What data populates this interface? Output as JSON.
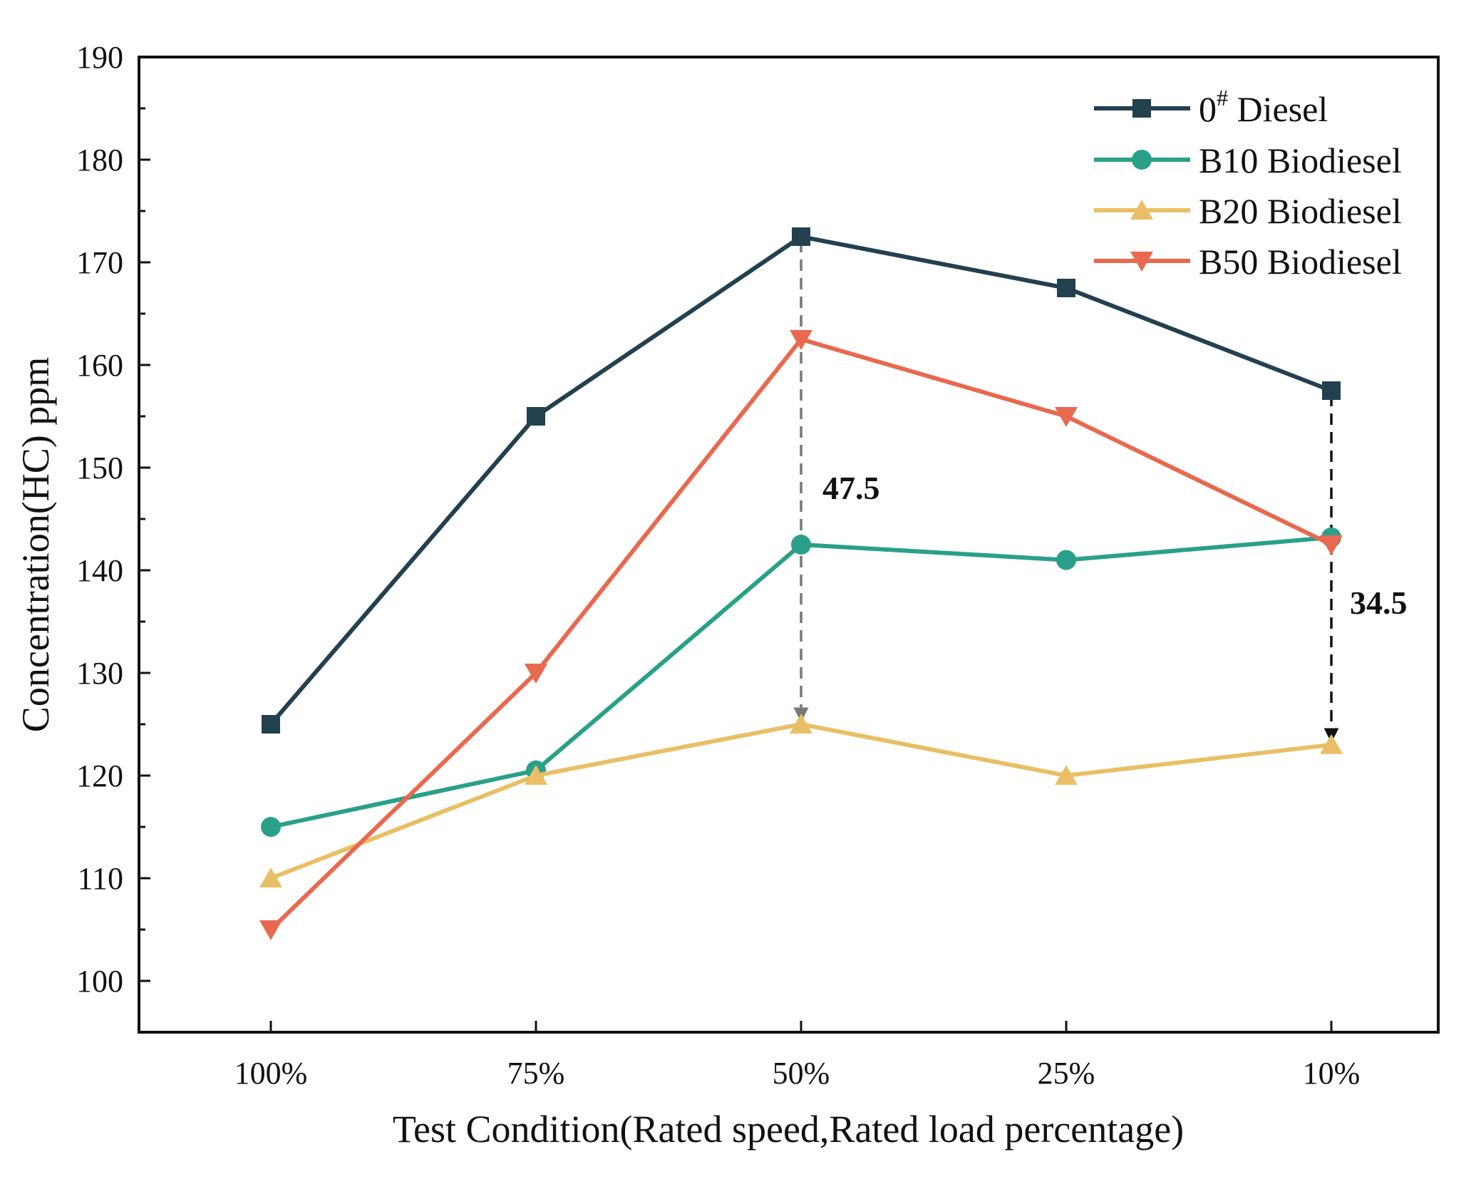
{
  "chart_data": {
    "type": "line",
    "xlabel": "Test Condition(Rated speed,Rated load percentage)",
    "ylabel": "Concentration(HC) ppm",
    "categories": [
      "100%",
      "75%",
      "50%",
      "25%",
      "10%"
    ],
    "ylim": [
      95,
      190
    ],
    "yticks": [
      100,
      110,
      120,
      130,
      140,
      150,
      160,
      170,
      180,
      190
    ],
    "grid": false,
    "legend_position": "top-right",
    "series": [
      {
        "name_main": "0",
        "name_sup": "#",
        "name_rest": " Diesel",
        "marker": "square",
        "color": "#23404f",
        "values": [
          125,
          155,
          172.5,
          167.5,
          157.5
        ]
      },
      {
        "name": "B10 Biodiesel",
        "marker": "circle",
        "color": "#2aa089",
        "values": [
          115,
          120.5,
          142.5,
          141,
          143.2
        ]
      },
      {
        "name": "B20 Biodiesel",
        "marker": "triangle-up",
        "color": "#e9bf66",
        "values": [
          110,
          120,
          125,
          120,
          123
        ]
      },
      {
        "name": "B50 Biodiesel",
        "marker": "triangle-down",
        "color": "#e8694f",
        "values": [
          105,
          130,
          162.5,
          155,
          142.5
        ]
      }
    ],
    "annotations": [
      {
        "text": "47.5",
        "category_index": 2,
        "from": 172.5,
        "to": 125,
        "color": "#777777"
      },
      {
        "text": "34.5",
        "category_index": 4,
        "from": 157.5,
        "to": 123,
        "color": "#111111"
      }
    ]
  }
}
